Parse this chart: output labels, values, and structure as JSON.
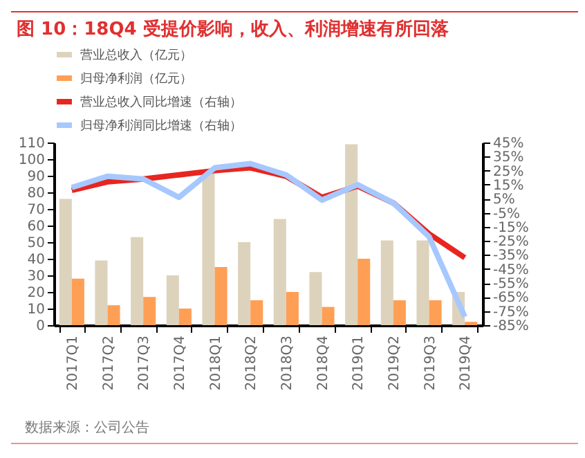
{
  "chart_data": {
    "type": "bar",
    "title": "图 10：18Q4 受提价影响，收入、利润增速有所回落",
    "annotations": [
      "数据来源：公司公告"
    ],
    "categories": [
      "2017Q1",
      "2017Q2",
      "2017Q3",
      "2017Q4",
      "2018Q1",
      "2018Q2",
      "2018Q3",
      "2018Q4",
      "2019Q1",
      "2019Q2",
      "2019Q3",
      "2019Q4"
    ],
    "series": [
      {
        "name": "营业总收入（亿元）",
        "color": "#ddd3bd",
        "values": [
          76,
          39,
          53,
          30,
          93,
          50,
          64,
          32,
          109,
          51,
          51,
          20
        ]
      },
      {
        "name": "归母净利润（亿元）",
        "color": "#ff9f55",
        "values": [
          28,
          12,
          17,
          10,
          35,
          15,
          20,
          11,
          40,
          15,
          15,
          2
        ]
      },
      {
        "name": "营业总收入同比增速（右轴）",
        "type": "line",
        "axis": "y2",
        "color": "#e8251f",
        "values": [
          11,
          17,
          19,
          22,
          25,
          27,
          21,
          6,
          14,
          2,
          -20,
          -37
        ]
      },
      {
        "name": "归母净利润同比增速（右轴）",
        "type": "line",
        "axis": "y2",
        "color": "#a6c8ff",
        "values": [
          13,
          21,
          19,
          6,
          27,
          30,
          22,
          4,
          15,
          2,
          -22,
          -79
        ]
      }
    ],
    "ylim": [
      0,
      110
    ],
    "yticks": [
      0,
      10,
      20,
      30,
      40,
      50,
      60,
      70,
      80,
      90,
      100,
      110
    ],
    "y2lim": [
      -85,
      45
    ],
    "y2ticks": [
      {
        "value": -85,
        "label": "-85%"
      },
      {
        "value": -75,
        "label": "-75%"
      },
      {
        "value": -65,
        "label": "-65%"
      },
      {
        "value": -55,
        "label": "-55%"
      },
      {
        "value": -45,
        "label": "-45%"
      },
      {
        "value": -35,
        "label": "-35%"
      },
      {
        "value": -25,
        "label": "-25%"
      },
      {
        "value": -15,
        "label": "-15%"
      },
      {
        "value": -5,
        "label": "-5%"
      },
      {
        "value": 5,
        "label": "5%"
      },
      {
        "value": 15,
        "label": "15%"
      },
      {
        "value": 25,
        "label": "25%"
      },
      {
        "value": 35,
        "label": "35%"
      },
      {
        "value": 45,
        "label": "45%"
      }
    ],
    "grid": false,
    "legend": "top"
  }
}
